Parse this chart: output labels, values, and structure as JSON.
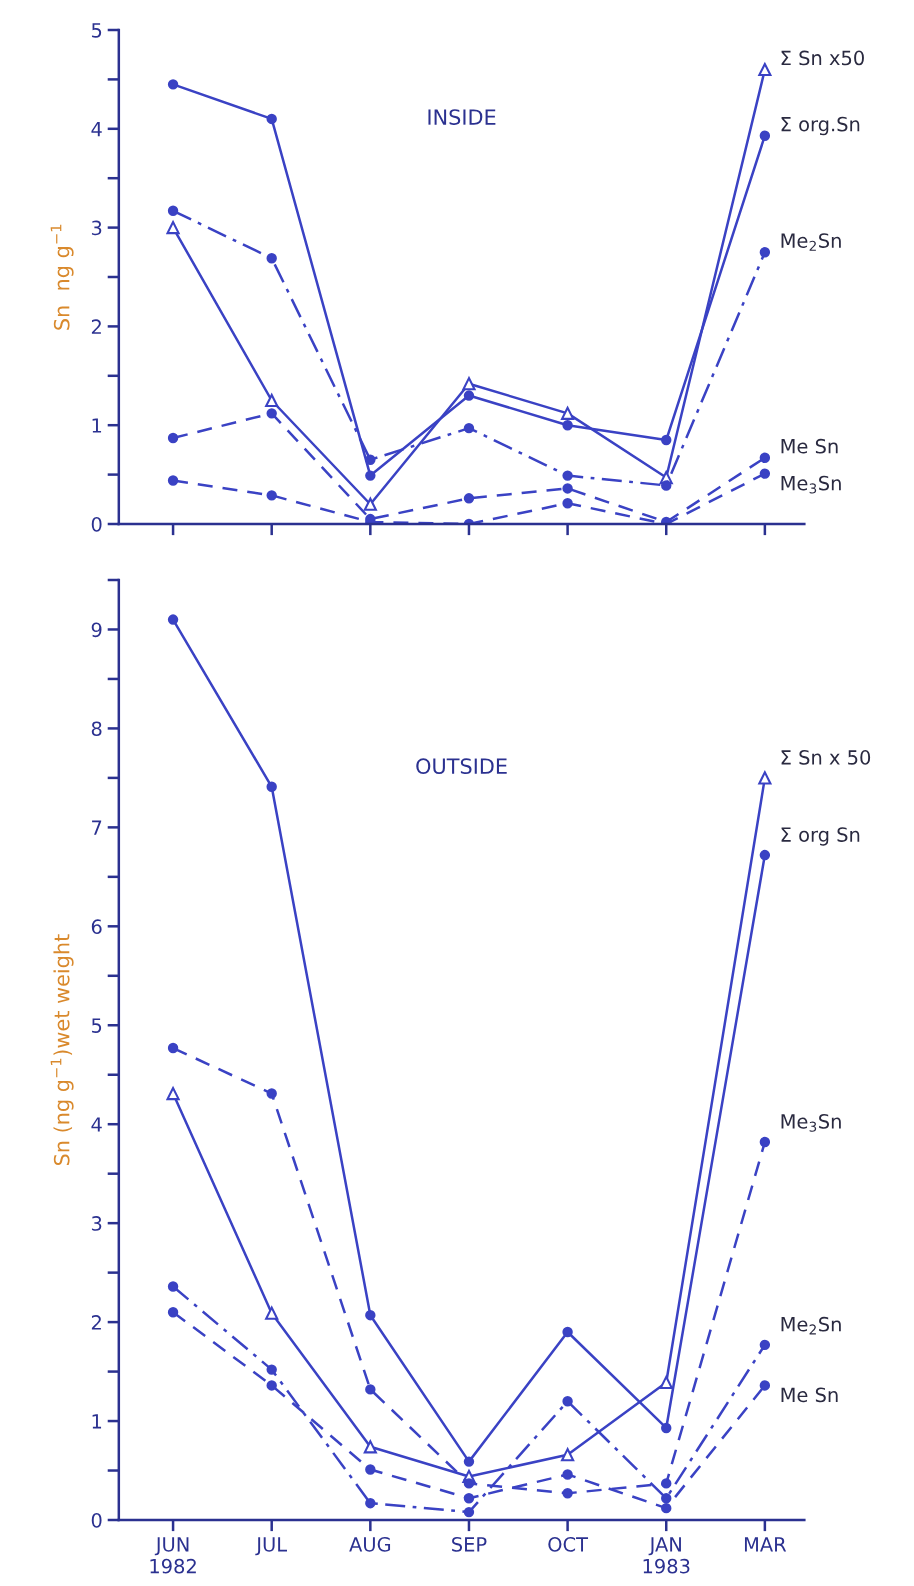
{
  "chart_data": [
    {
      "type": "line",
      "title": "INSIDE",
      "ylabel": "Sn  ng g$^{−1}$",
      "categories": [
        null,
        null,
        null,
        null,
        null,
        null,
        null
      ],
      "tick_labels": "y",
      "ylim": [
        0,
        5
      ],
      "yticks": [
        0,
        {
          "value": 0.5,
          "label": null
        },
        1,
        {
          "value": 1.5,
          "label": null
        },
        2,
        {
          "value": 2.5,
          "label": null
        },
        3,
        {
          "value": 3.5,
          "label": null
        },
        4,
        {
          "value": 4.5,
          "label": null
        },
        5
      ],
      "grid": false,
      "legend": false,
      "series": [
        {
          "name": "Σ Sn x50",
          "color": "#3a42c4",
          "marker": "triangle",
          "line_style": "solid",
          "values": [
            3.0,
            1.25,
            0.2,
            1.42,
            1.12,
            0.47,
            4.6
          ]
        },
        {
          "name": "Σ org.Sn",
          "color": "#3a42c4",
          "marker": "circle",
          "line_style": "solid",
          "values": [
            4.45,
            4.1,
            0.49,
            1.3,
            1.0,
            0.85,
            3.93
          ]
        },
        {
          "name": "Me$_{2}$Sn",
          "color": "#3a42c4",
          "marker": "circle",
          "line_style": "dashdot",
          "values": [
            3.17,
            2.69,
            0.65,
            0.97,
            0.49,
            0.39,
            2.75
          ]
        },
        {
          "name": "Me Sn",
          "color": "#3a42c4",
          "marker": "circle",
          "line_style": "dashed",
          "values": [
            0.87,
            1.12,
            0.05,
            0.26,
            0.36,
            0.02,
            0.67
          ]
        },
        {
          "name": "Me$_{3}$Sn",
          "color": "#3a42c4",
          "marker": "circle",
          "line_style": "dashed",
          "values": [
            0.44,
            0.29,
            0.02,
            0.0,
            0.21,
            0.0,
            0.51
          ]
        }
      ]
    },
    {
      "type": "line",
      "title": "OUTSIDE",
      "ylabel": "Sn (ng g$^{−1}$)wet weight",
      "categories": [
        "JUN\n1982",
        "JUL",
        "AUG",
        "SEP",
        "OCT",
        "JAN\n1983",
        "MAR"
      ],
      "ylim": [
        0,
        9.5
      ],
      "yticks": [
        0,
        {
          "value": 0.5,
          "label": null
        },
        1,
        {
          "value": 1.5,
          "label": null
        },
        2,
        {
          "value": 2.5,
          "label": null
        },
        3,
        {
          "value": 3.5,
          "label": null
        },
        4,
        {
          "value": 4.5,
          "label": null
        },
        5,
        {
          "value": 5.5,
          "label": null
        },
        6,
        {
          "value": 6.5,
          "label": null
        },
        7,
        {
          "value": 7.5,
          "label": null
        },
        8,
        {
          "value": 8.5,
          "label": null
        },
        9,
        {
          "value": 9.5,
          "label": null
        }
      ],
      "grid": false,
      "legend": false,
      "series": [
        {
          "name": "Σ Sn x 50",
          "color": "#3a42c4",
          "marker": "triangle",
          "line_style": "solid",
          "values": [
            4.31,
            2.09,
            0.74,
            0.44,
            0.66,
            1.39,
            7.5
          ]
        },
        {
          "name": "Σ org Sn",
          "color": "#3a42c4",
          "marker": "circle",
          "line_style": "solid",
          "values": [
            9.1,
            7.41,
            2.07,
            0.59,
            1.9,
            0.93,
            6.72
          ]
        },
        {
          "name": "Me$_{3}$Sn",
          "color": "#3a42c4",
          "marker": "circle",
          "line_style": "dashed",
          "values": [
            4.77,
            4.31,
            1.32,
            0.37,
            0.27,
            0.37,
            3.82
          ]
        },
        {
          "name": "Me$_{2}$Sn",
          "color": "#3a42c4",
          "marker": "circle",
          "line_style": "dashdot",
          "values": [
            2.36,
            1.52,
            0.17,
            0.08,
            1.2,
            0.22,
            1.77
          ]
        },
        {
          "name": "Me Sn",
          "color": "#3a42c4",
          "marker": "circle",
          "line_style": "dashed",
          "values": [
            2.1,
            1.36,
            0.51,
            0.22,
            0.46,
            0.12,
            1.36
          ]
        }
      ]
    }
  ]
}
